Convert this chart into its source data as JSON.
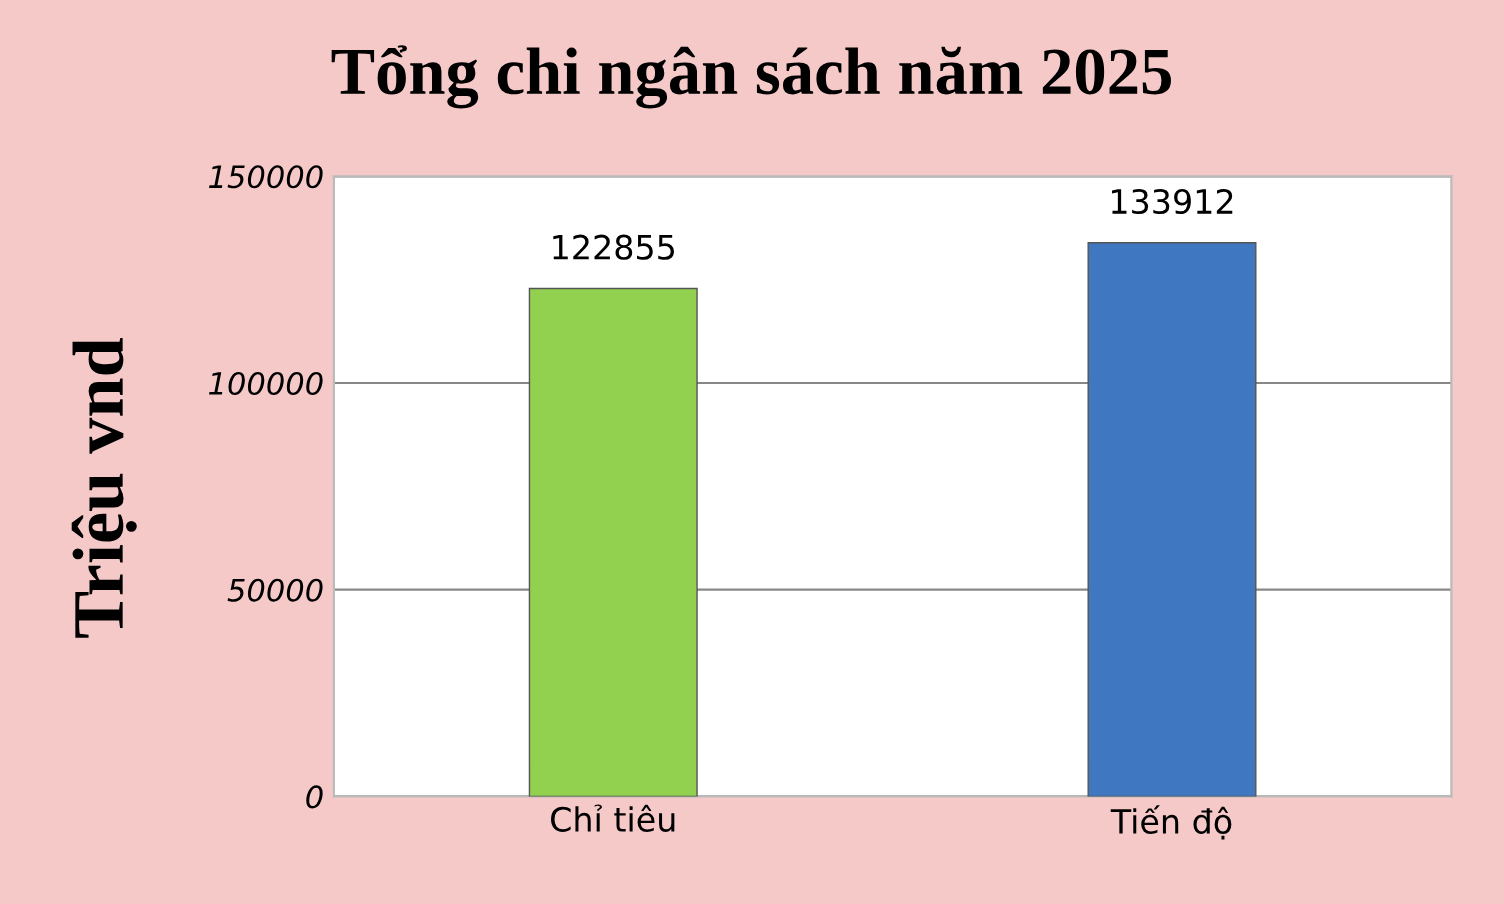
{
  "chart_data": {
    "type": "bar",
    "title": "Tổng chi ngân sách năm 2025",
    "ylabel": "Triệu vnd",
    "categories": [
      "Chỉ tiêu",
      "Tiến độ"
    ],
    "values": [
      122855,
      133912
    ],
    "colors": [
      "#92d050",
      "#3f77c0"
    ],
    "ylim": [
      0,
      150000
    ],
    "yticks": [
      0,
      50000,
      100000,
      150000
    ],
    "grid": "y",
    "data_labels": true,
    "legend": false
  }
}
